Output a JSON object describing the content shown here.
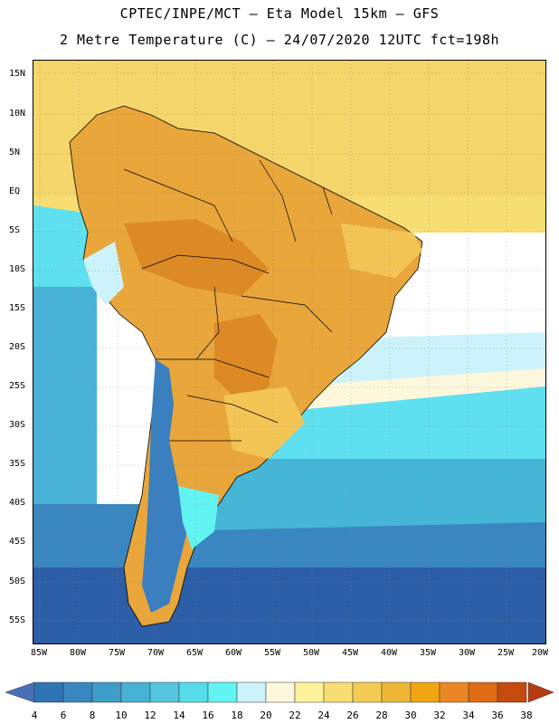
{
  "header": {
    "title_line1": "CPTEC/INPE/MCT –  Eta Model 15km – GFS",
    "title_line2": "2 Metre Temperature (C) – 24/07/2020 12UTC fct=198h"
  },
  "map": {
    "lat_labels": [
      "15N",
      "10N",
      "5N",
      "EQ",
      "5S",
      "10S",
      "15S",
      "20S",
      "25S",
      "30S",
      "35S",
      "40S",
      "45S",
      "50S",
      "55S"
    ],
    "lon_labels": [
      "85W",
      "80W",
      "75W",
      "70W",
      "65W",
      "60W",
      "55W",
      "50W",
      "45W",
      "40W",
      "35W",
      "30W",
      "25W",
      "20W"
    ],
    "colors": {
      "ocean_far_south": "#2b5ea6",
      "ocean_south": "#3a86c0",
      "ocean_mid": "#45b6d6",
      "ocean_cyan": "#5fe0f0",
      "ocean_light": "#cdf3fa",
      "ocean_tropic": "#f5d66a",
      "land_warm": "#e9a63a",
      "land_hot": "#dd8a24",
      "land_mild": "#f3c555",
      "andes_cold": "#3a7fbf",
      "border": "#000000"
    }
  },
  "colorbar": {
    "labels": [
      "4",
      "6",
      "8",
      "10",
      "12",
      "14",
      "16",
      "18",
      "20",
      "22",
      "24",
      "26",
      "28",
      "30",
      "32",
      "34",
      "36",
      "38"
    ],
    "colors": [
      "#4a6fb8",
      "#2e74b5",
      "#3a86c0",
      "#3f9dc9",
      "#48b2d6",
      "#54c6df",
      "#55dbe9",
      "#62f4f2",
      "#cdf3fa",
      "#fdf7dc",
      "#fdf19a",
      "#f7de72",
      "#f4cb52",
      "#eeb735",
      "#f1a512",
      "#ea8722",
      "#df6b12",
      "#c44a0e",
      "#b83a10"
    ],
    "left_arrow_color": "#4a6fb8",
    "right_arrow_color": "#b83a10"
  }
}
